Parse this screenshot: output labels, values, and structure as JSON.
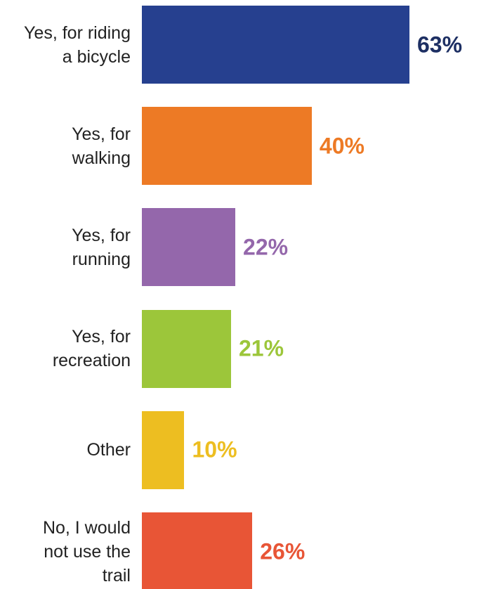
{
  "chart_data": {
    "type": "bar",
    "orientation": "horizontal",
    "categories": [
      "Yes, for riding\na bicycle",
      "Yes, for\nwalking",
      "Yes, for\nrunning",
      "Yes, for\nrecreation",
      "Other",
      "No, I would\nnot use the\ntrail"
    ],
    "values": [
      63,
      40,
      22,
      21,
      10,
      26
    ],
    "value_labels": [
      "63%",
      "40%",
      "22%",
      "21%",
      "10%",
      "26%"
    ],
    "colors": [
      "#26408f",
      "#ed7a25",
      "#9467ab",
      "#9cc63a",
      "#edbe21",
      "#e85536"
    ],
    "label_colors": [
      "#1d2f63",
      "#ed7a25",
      "#9467ab",
      "#9cc63a",
      "#edbe21",
      "#e85536"
    ]
  }
}
